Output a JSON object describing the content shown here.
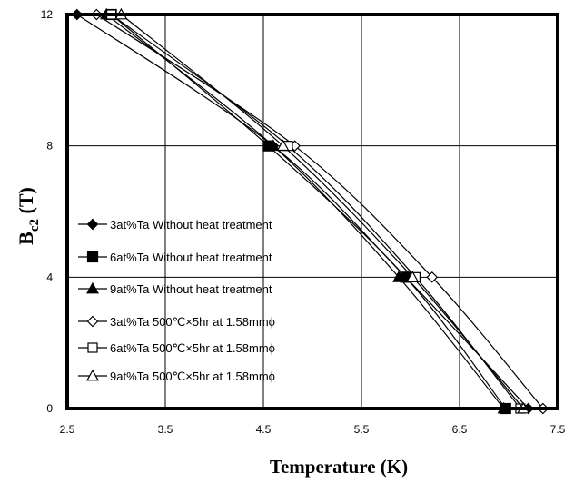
{
  "chart_data": {
    "type": "line",
    "title": "",
    "xlabel": "Temperature (K)",
    "ylabel_main": "B",
    "ylabel_sub": "c2",
    "ylabel_unit": " (T)",
    "xlim": [
      2.5,
      7.5
    ],
    "ylim": [
      0,
      12
    ],
    "xticks": [
      2.5,
      3.5,
      4.5,
      5.5,
      6.5,
      7.5
    ],
    "xtick_labels": [
      "2.5",
      "3.5",
      "4.5",
      "5.5",
      "6.5",
      "7.5"
    ],
    "yticks": [
      0,
      4,
      8,
      12
    ],
    "ytick_labels": [
      "0",
      "4",
      "8",
      "12"
    ],
    "grid": true,
    "legend_position": "lower-left",
    "series": [
      {
        "name": "3at%Ta Without heat treatment",
        "marker": "diamond-filled",
        "x": [
          2.6,
          4.6,
          5.95,
          7.2
        ],
        "y": [
          12,
          8,
          4,
          0
        ]
      },
      {
        "name": "6at%Ta  Without heat treatment",
        "marker": "square-filled",
        "x": [
          2.95,
          4.55,
          5.95,
          6.97
        ],
        "y": [
          12,
          8,
          4,
          0
        ]
      },
      {
        "name": "9at%Ta  Without heat treatment",
        "marker": "triangle-filled",
        "x": [
          2.9,
          4.6,
          5.88,
          6.95
        ],
        "y": [
          12,
          8,
          4,
          0
        ]
      },
      {
        "name": "3at%Ta 500℃×5hr at 1.58mmϕ",
        "marker": "diamond-open",
        "x": [
          2.8,
          4.82,
          6.22,
          7.35
        ],
        "y": [
          12,
          8,
          4,
          0
        ]
      },
      {
        "name": "6at%Ta 500℃×5hr at  1.58mmϕ",
        "marker": "square-open",
        "x": [
          2.95,
          4.75,
          6.05,
          7.12
        ],
        "y": [
          12,
          8,
          4,
          0
        ]
      },
      {
        "name": "9at%Ta 500℃×5hr at 1.58mmϕ",
        "marker": "triangle-open",
        "x": [
          3.05,
          4.7,
          6.02,
          7.15
        ],
        "y": [
          12,
          8,
          4,
          0
        ]
      }
    ]
  }
}
